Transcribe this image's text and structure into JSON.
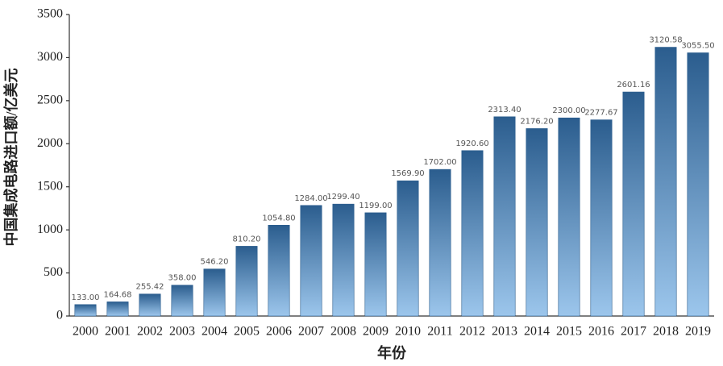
{
  "chart_data": {
    "type": "bar",
    "xlabel": "年份",
    "ylabel": "中国集成电路进口额/亿美元",
    "categories": [
      "2000",
      "2001",
      "2002",
      "2003",
      "2004",
      "2005",
      "2006",
      "2007",
      "2008",
      "2009",
      "2010",
      "2011",
      "2012",
      "2013",
      "2014",
      "2015",
      "2016",
      "2017",
      "2018",
      "2019"
    ],
    "values": [
      133,
      164.68,
      255.42,
      358,
      546.2,
      810.2,
      1054.8,
      1284,
      1299.4,
      1199,
      1569.9,
      1702,
      1920.6,
      2313.4,
      2176.2,
      2300,
      2277.67,
      2601.16,
      3120.58,
      3055.5
    ],
    "value_labels": [
      "133.00",
      "164.68",
      "255.42",
      "358.00",
      "546.20",
      "810.20",
      "1054.80",
      "1284.00",
      "1299.40",
      "1199.00",
      "1569.90",
      "1702.00",
      "1920.60",
      "2313.40",
      "2176.20",
      "2300.00",
      "2277.67",
      "2601.16",
      "3120.58",
      "3055.50"
    ],
    "color": "#2b5d8e",
    "ylim": [
      0,
      3500
    ],
    "yticks": [
      0,
      500,
      1000,
      1500,
      2000,
      2500,
      3000,
      3500
    ],
    "grid": false
  }
}
